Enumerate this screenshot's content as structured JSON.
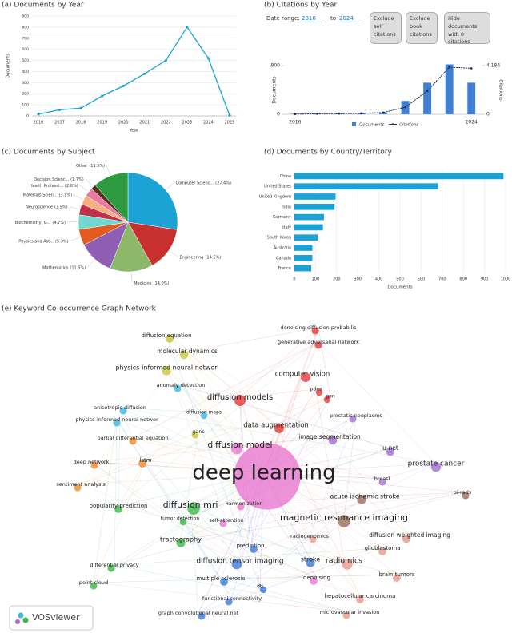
{
  "chart_data": [
    {
      "type": "line",
      "title": "(a) Documents by Year",
      "x_label": "Year",
      "y_label": "Documents",
      "categories": [
        "2016",
        "2017",
        "2018",
        "2019",
        "2020",
        "2021",
        "2022",
        "2023",
        "2024",
        "2025"
      ],
      "values": [
        15,
        55,
        70,
        180,
        270,
        380,
        500,
        800,
        520,
        5
      ],
      "color": "#1ba3d6",
      "ylim": [
        0,
        900
      ],
      "yticks": [
        0,
        100,
        200,
        300,
        400,
        500,
        600,
        700,
        800,
        900
      ],
      "grid": true
    },
    {
      "type": "bar_line",
      "title": "(b) Citations by Year",
      "date_range_label": "Date range:",
      "date_from": "2016",
      "date_to_label": "to",
      "date_to": "2024",
      "buttons": [
        "Exclude self citations",
        "Exclude book citations",
        "Hide documents with 0 citations"
      ],
      "categories": [
        "2016",
        null,
        null,
        null,
        null,
        null,
        null,
        null,
        "2024"
      ],
      "y_label": "Documents",
      "y2_label": "Citations",
      "ylim": [
        0,
        800
      ],
      "yticks": [
        0,
        800
      ],
      "y2lim": [
        0,
        4184
      ],
      "y2ticks": [
        0,
        {
          "value": 4184,
          "label": "4,184"
        }
      ],
      "series": [
        {
          "name": "Documents",
          "type": "bar",
          "color": "#3f7fd6",
          "values": [
            8,
            10,
            12,
            15,
            18,
            220,
            520,
            820,
            520
          ]
        },
        {
          "name": "Citations",
          "type": "line",
          "color": "#1f2d4d",
          "axis": "y2",
          "values": [
            20,
            40,
            60,
            80,
            150,
            600,
            2000,
            4050,
            3950
          ]
        }
      ]
    },
    {
      "type": "pie",
      "title": "(c) Documents by Subject",
      "categories": [
        "Computer Scienc...",
        "Engineering",
        "Medicine",
        "Mathematics",
        "Physics and Ast...",
        "Biochemistry, G...",
        "Neuroscience",
        "Materials Scien...",
        "Health Professi...",
        "Decision Scienc...",
        "Other"
      ],
      "values": [
        27.4,
        14.5,
        14.0,
        11.5,
        5.3,
        4.7,
        3.5,
        3.1,
        2.8,
        1.7,
        11.5
      ],
      "value_labels": [
        "(27.4%)",
        "(14.5%)",
        "(14.0%)",
        "(11.5%)",
        "(5.3%)",
        "(4.7%)",
        "(3.5%)",
        "(3.1%)",
        "(2.8%)",
        "(1.7%)",
        "(11.5%)"
      ],
      "colors": [
        "#1ba3d6",
        "#c8312f",
        "#8db86a",
        "#8e5fb5",
        "#e35c1f",
        "#6fd8d0",
        "#c0304a",
        "#f5b080",
        "#e87aa0",
        "#5a3020",
        "#2e9a40"
      ]
    },
    {
      "type": "hbar",
      "title": "(d) Documents by Country/Territory",
      "x_label": "Documents",
      "categories": [
        "China",
        "United States",
        "United Kingdom",
        "India",
        "Germany",
        "Italy",
        "South Korea",
        "Australia",
        "Canada",
        "France"
      ],
      "values": [
        990,
        680,
        195,
        190,
        140,
        135,
        110,
        85,
        85,
        80
      ],
      "color": "#1ba3d6",
      "xlim": [
        0,
        1000
      ],
      "xticks": [
        0,
        100,
        200,
        300,
        400,
        500,
        600,
        700,
        800,
        900,
        1000
      ],
      "grid": true
    }
  ],
  "network": {
    "title": "(e) Keyword Co-occurrence Graph Network",
    "logo": "VOSviewer",
    "keywords": [
      "denoising diffusion probabilis",
      "generative adversarial network",
      "diffusion equation",
      "molecular dynamics",
      "physics-informed neural networ",
      "computer vision",
      "anomaly detection",
      "diffusion models",
      "pdes",
      "gan",
      "diffusion maps",
      "anisotropic diffusion",
      "prostatic neoplasms",
      "physics-informed neural networ",
      "data augmentation",
      "gans",
      "partial differential equation",
      "image segmentation",
      "diffusion model",
      "u-net",
      "deep network",
      "lstm",
      "prostate cancer",
      "deep learning",
      "sentiment analysis",
      "breast",
      "pi-rads",
      "acute ischemic stroke",
      "popularity prediction",
      "diffusion mri",
      "harmonization",
      "magnetic resonance imaging",
      "tumor detection",
      "self-attention",
      "tractography",
      "radiogenomics",
      "diffusion weighted imaging",
      "glioblastoma",
      "prediction",
      "diffusion tensor imaging",
      "stroke",
      "radiomics",
      "differential privacy",
      "brain tumors",
      "multiple sclerosis",
      "denoising",
      "point cloud",
      "dti",
      "functional connectivity",
      "hepatocellular carcinoma",
      "graph convolutional neural net",
      "microvascular invasion"
    ]
  }
}
